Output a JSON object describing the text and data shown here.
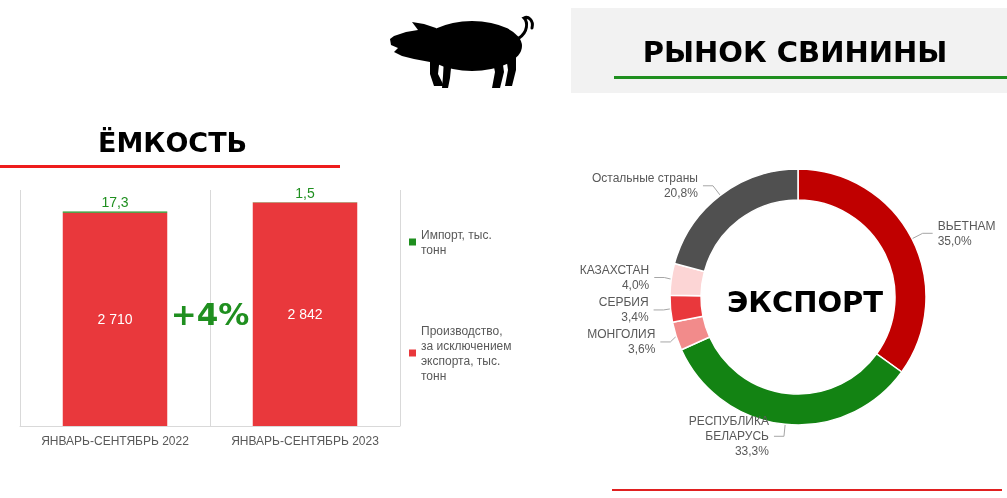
{
  "chart_data": [
    {
      "type": "bar",
      "title": "ЁМКОСТЬ",
      "stacked": true,
      "categories": [
        "ЯНВАРЬ-СЕНТЯБРЬ 2022",
        "ЯНВАРЬ-СЕНТЯБРЬ 2023"
      ],
      "series": [
        {
          "name": "Производство, за исключением экспорта, тыс. тонн",
          "color": "#e9383c",
          "values": [
            2710,
            2842
          ],
          "value_labels": [
            "2 710",
            "2 842"
          ]
        },
        {
          "name": "Импорт, тыс. тонн",
          "color": "#1f8f1f",
          "values": [
            17.3,
            1.5
          ],
          "value_labels": [
            "17,3",
            "1,5"
          ]
        }
      ],
      "annotations": [
        "+4%"
      ],
      "legend": "right",
      "grid": "x",
      "tick_labels": "x"
    },
    {
      "type": "donut",
      "title": "ЭКСПОРТ",
      "categories": [
        "ВЬЕТНАМ",
        "РЕСПУБЛИКА БЕЛАРУСЬ",
        "МОНГОЛИЯ",
        "СЕРБИЯ",
        "КАЗАХСТАН",
        "Остальные страны"
      ],
      "values": [
        35.0,
        33.3,
        3.6,
        3.4,
        4.0,
        20.8
      ],
      "value_labels": [
        "35,0%",
        "33,3%",
        "3,6%",
        "3,4%",
        "4,0%",
        "20,8%"
      ],
      "colors": [
        "#c00000",
        "#138313",
        "#f28b8b",
        "#e9383c",
        "#fcd5d5",
        "#505050"
      ],
      "annotations": [
        "РЫНОК СВИНИНЫ"
      ]
    }
  ]
}
